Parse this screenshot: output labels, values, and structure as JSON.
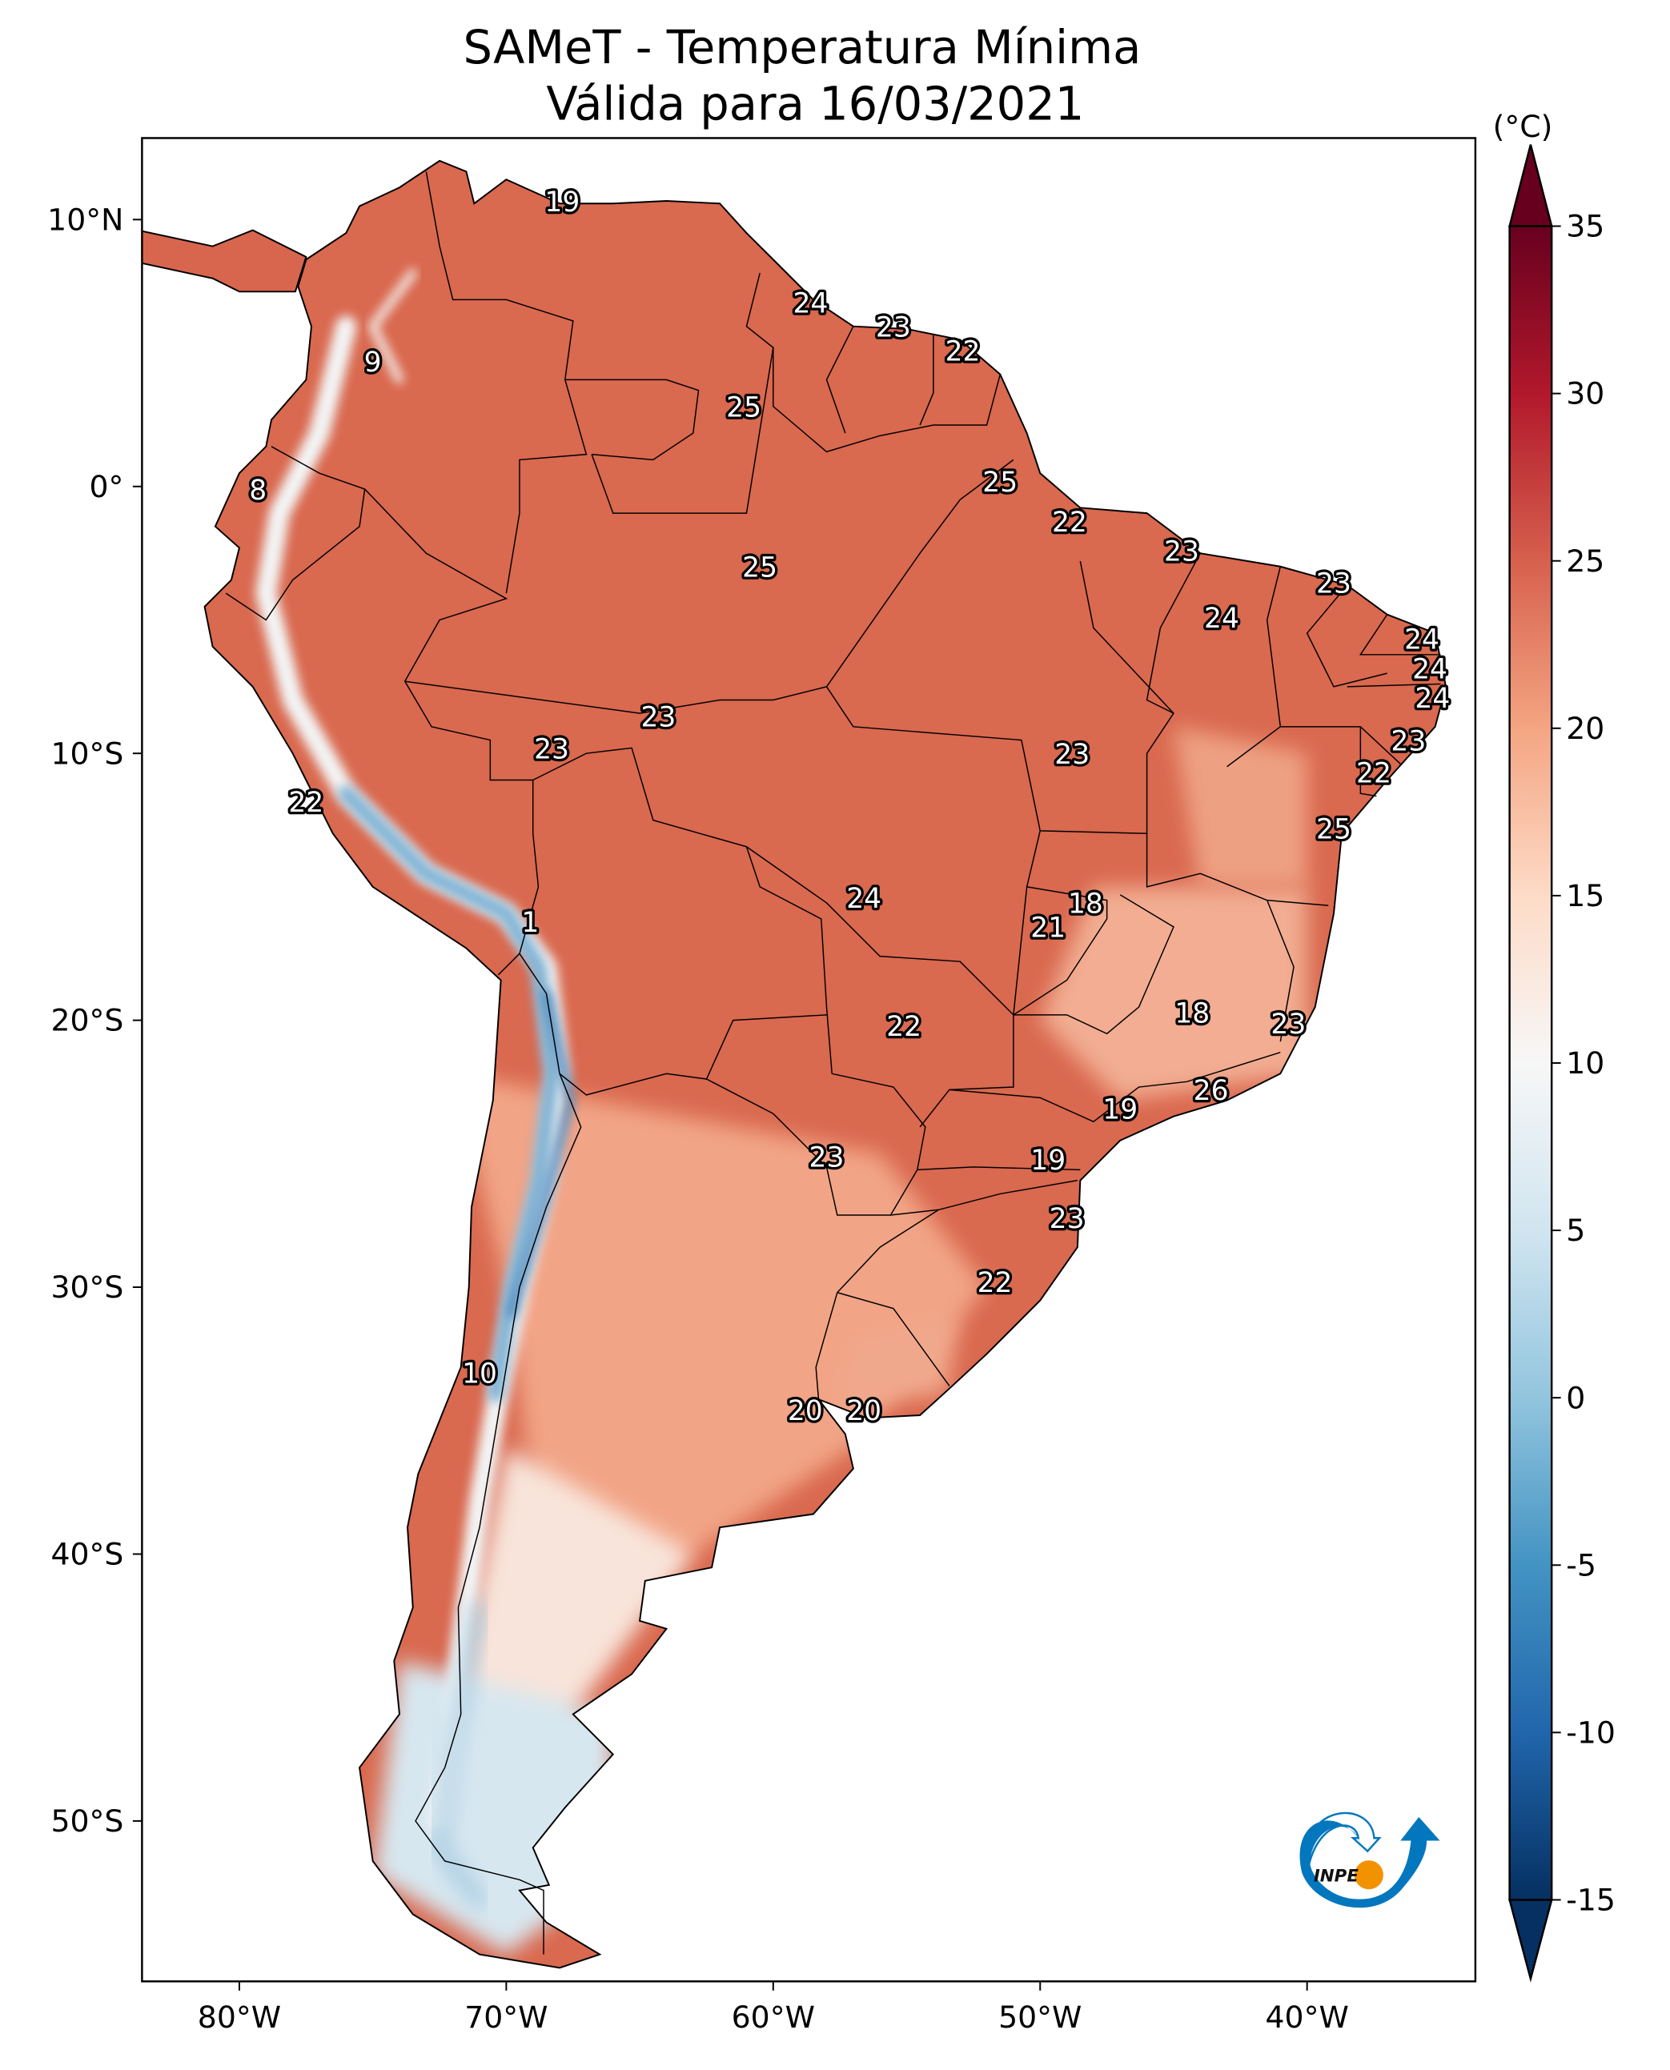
{
  "title": {
    "line1": "SAMeT - Temperatura Mínima",
    "line2": "Válida para 16/03/2021"
  },
  "colorbar": {
    "unit_label": "(°C)",
    "min": -15,
    "max": 35,
    "extend": "both",
    "colormap": "RdBu_r",
    "ticks": [
      35,
      30,
      25,
      20,
      15,
      10,
      5,
      0,
      -5,
      -10,
      -15
    ],
    "tick_labels": [
      "35",
      "30",
      "25",
      "20",
      "15",
      "10",
      "5",
      "0",
      "-5",
      "-10",
      "-15"
    ],
    "color_stops": [
      {
        "value": -15,
        "color": "#053061"
      },
      {
        "value": -10,
        "color": "#2166ac"
      },
      {
        "value": -5,
        "color": "#4393c3"
      },
      {
        "value": 0,
        "color": "#92c5de"
      },
      {
        "value": 5,
        "color": "#d1e5f0"
      },
      {
        "value": 10,
        "color": "#f7f7f7"
      },
      {
        "value": 15,
        "color": "#fddbc7"
      },
      {
        "value": 20,
        "color": "#f4a582"
      },
      {
        "value": 25,
        "color": "#d6604d"
      },
      {
        "value": 30,
        "color": "#b2182b"
      },
      {
        "value": 35,
        "color": "#67001f"
      }
    ]
  },
  "map": {
    "extent": {
      "lon": [
        -83.6,
        -33.7
      ],
      "lat": [
        -56,
        13
      ]
    },
    "lon_ticks": [
      {
        "value": -80,
        "label": "80°W"
      },
      {
        "value": -70,
        "label": "70°W"
      },
      {
        "value": -60,
        "label": "60°W"
      },
      {
        "value": -50,
        "label": "50°W"
      },
      {
        "value": -40,
        "label": "40°W"
      }
    ],
    "lat_ticks": [
      {
        "value": 10,
        "label": "10°N"
      },
      {
        "value": 0,
        "label": "0°"
      },
      {
        "value": -10,
        "label": "10°S"
      },
      {
        "value": -20,
        "label": "20°S"
      },
      {
        "value": -30,
        "label": "30°S"
      },
      {
        "value": -40,
        "label": "40°S"
      },
      {
        "value": -50,
        "label": "50°S"
      }
    ],
    "point_labels": [
      {
        "lon": -67.9,
        "lat": 10.6,
        "value": "19"
      },
      {
        "lon": -58.6,
        "lat": 6.8,
        "value": "24"
      },
      {
        "lon": -55.5,
        "lat": 5.9,
        "value": "23"
      },
      {
        "lon": -52.9,
        "lat": 5.0,
        "value": "22"
      },
      {
        "lon": -75.0,
        "lat": 4.6,
        "value": "9"
      },
      {
        "lon": -61.1,
        "lat": 2.9,
        "value": "25"
      },
      {
        "lon": -79.3,
        "lat": -0.2,
        "value": "8"
      },
      {
        "lon": -51.5,
        "lat": 0.1,
        "value": "25"
      },
      {
        "lon": -48.9,
        "lat": -1.4,
        "value": "22"
      },
      {
        "lon": -44.7,
        "lat": -2.5,
        "value": "23"
      },
      {
        "lon": -60.5,
        "lat": -3.1,
        "value": "25"
      },
      {
        "lon": -39.0,
        "lat": -3.7,
        "value": "23"
      },
      {
        "lon": -43.2,
        "lat": -5.0,
        "value": "24"
      },
      {
        "lon": -35.7,
        "lat": -5.8,
        "value": "24"
      },
      {
        "lon": -35.4,
        "lat": -6.9,
        "value": "24"
      },
      {
        "lon": -35.3,
        "lat": -8.0,
        "value": "24"
      },
      {
        "lon": -64.3,
        "lat": -8.7,
        "value": "23"
      },
      {
        "lon": -36.2,
        "lat": -9.6,
        "value": "23"
      },
      {
        "lon": -68.3,
        "lat": -9.9,
        "value": "23"
      },
      {
        "lon": -48.8,
        "lat": -10.1,
        "value": "23"
      },
      {
        "lon": -37.5,
        "lat": -10.8,
        "value": "22"
      },
      {
        "lon": -77.5,
        "lat": -11.9,
        "value": "22"
      },
      {
        "lon": -39.0,
        "lat": -12.9,
        "value": "25"
      },
      {
        "lon": -56.6,
        "lat": -15.5,
        "value": "24"
      },
      {
        "lon": -48.3,
        "lat": -15.7,
        "value": "18"
      },
      {
        "lon": -69.1,
        "lat": -16.4,
        "value": "1"
      },
      {
        "lon": -49.7,
        "lat": -16.6,
        "value": "21"
      },
      {
        "lon": -44.3,
        "lat": -19.8,
        "value": "18"
      },
      {
        "lon": -40.7,
        "lat": -20.2,
        "value": "23"
      },
      {
        "lon": -55.1,
        "lat": -20.3,
        "value": "22"
      },
      {
        "lon": -43.6,
        "lat": -22.7,
        "value": "26"
      },
      {
        "lon": -47.0,
        "lat": -23.4,
        "value": "19"
      },
      {
        "lon": -58.0,
        "lat": -25.2,
        "value": "23"
      },
      {
        "lon": -49.7,
        "lat": -25.3,
        "value": "19"
      },
      {
        "lon": -49.0,
        "lat": -27.5,
        "value": "23"
      },
      {
        "lon": -51.7,
        "lat": -29.9,
        "value": "22"
      },
      {
        "lon": -71.0,
        "lat": -33.3,
        "value": "10"
      },
      {
        "lon": -58.8,
        "lat": -34.7,
        "value": "20"
      },
      {
        "lon": -56.6,
        "lat": -34.7,
        "value": "20"
      }
    ]
  },
  "logo": {
    "text": "INPE",
    "colors": {
      "blue": "#0277bd",
      "orange": "#f39200"
    }
  }
}
